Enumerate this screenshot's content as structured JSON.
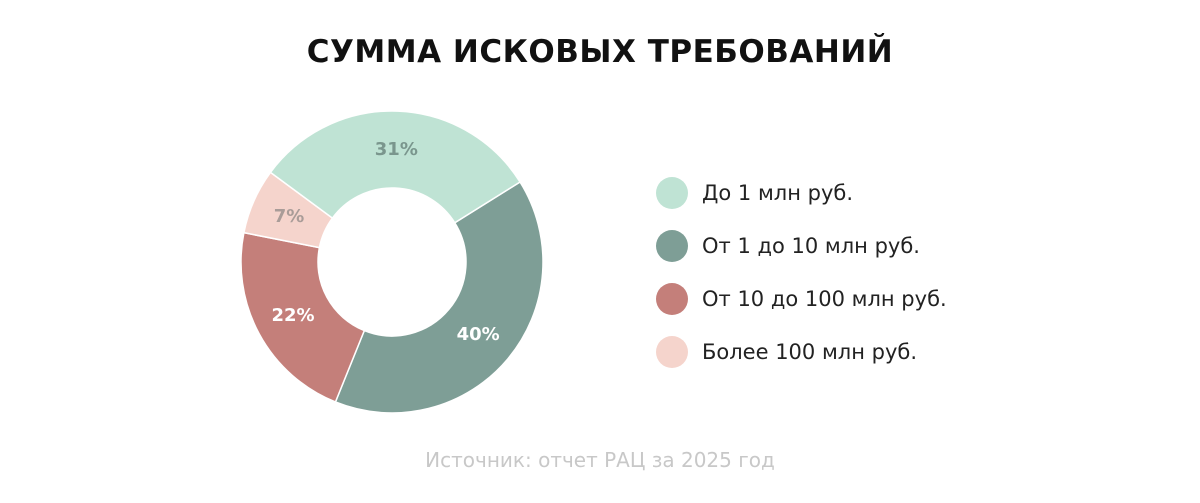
{
  "chart_data": {
    "type": "pie",
    "title": "СУММА ИСКОВЫХ ТРЕБОВАНИЙ",
    "categories": [
      "До 1 млн руб.",
      "От 1 до 10 млн руб.",
      "От 10 до 100 млн руб.",
      "Более 100 млн руб."
    ],
    "values": [
      31,
      40,
      22,
      7
    ],
    "value_labels": [
      "31%",
      "40%",
      "22%",
      "7%"
    ],
    "unit": "%",
    "colors": [
      "#bfe3d4",
      "#7e9e96",
      "#c47f7a",
      "#f5d4cc"
    ],
    "label_colors": [
      "#7a968d",
      "#ffffff",
      "#ffffff",
      "#a99c98"
    ],
    "donut": true,
    "legend_position": "right"
  },
  "source": "Источник: отчет РАЦ за 2025 год"
}
